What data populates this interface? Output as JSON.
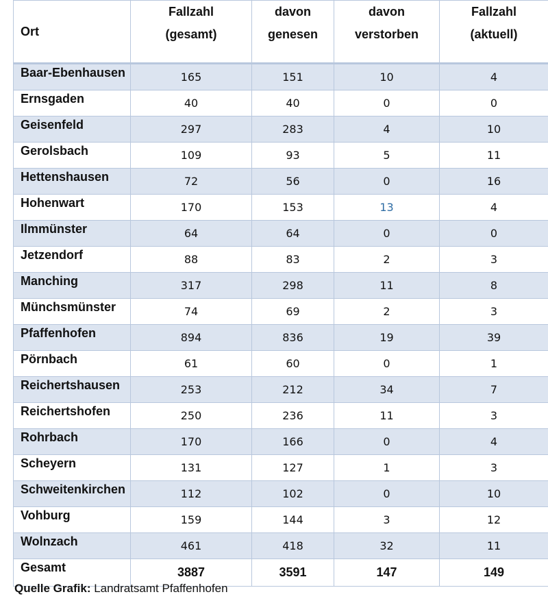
{
  "table": {
    "headers": {
      "ort": "Ort",
      "fallzahl_gesamt": [
        "Fallzahl",
        "(gesamt)"
      ],
      "genesen": [
        "davon",
        "genesen"
      ],
      "verstorben": [
        "davon",
        "verstorben"
      ],
      "fallzahl_aktuell": [
        "Fallzahl",
        "(aktuell)"
      ]
    },
    "rows": [
      {
        "ort": "Baar-Ebenhausen",
        "gesamt": "165",
        "genesen": "151",
        "verstorben": "10",
        "aktuell": "4"
      },
      {
        "ort": "Ernsgaden",
        "gesamt": "40",
        "genesen": "40",
        "verstorben": "0",
        "aktuell": "0"
      },
      {
        "ort": "Geisenfeld",
        "gesamt": "297",
        "genesen": "283",
        "verstorben": "4",
        "aktuell": "10"
      },
      {
        "ort": "Gerolsbach",
        "gesamt": "109",
        "genesen": "93",
        "verstorben": "5",
        "aktuell": "11"
      },
      {
        "ort": "Hettenshausen",
        "gesamt": "72",
        "genesen": "56",
        "verstorben": "0",
        "aktuell": "16"
      },
      {
        "ort": "Hohenwart",
        "gesamt": "170",
        "genesen": "153",
        "verstorben": "13",
        "aktuell": "4"
      },
      {
        "ort": "Ilmmünster",
        "gesamt": "64",
        "genesen": "64",
        "verstorben": "0",
        "aktuell": "0"
      },
      {
        "ort": "Jetzendorf",
        "gesamt": "88",
        "genesen": "83",
        "verstorben": "2",
        "aktuell": "3"
      },
      {
        "ort": "Manching",
        "gesamt": "317",
        "genesen": "298",
        "verstorben": "11",
        "aktuell": "8"
      },
      {
        "ort": "Münchsmünster",
        "gesamt": "74",
        "genesen": "69",
        "verstorben": "2",
        "aktuell": "3"
      },
      {
        "ort": "Pfaffenhofen",
        "gesamt": "894",
        "genesen": "836",
        "verstorben": "19",
        "aktuell": "39"
      },
      {
        "ort": "Pörnbach",
        "gesamt": "61",
        "genesen": "60",
        "verstorben": "0",
        "aktuell": "1"
      },
      {
        "ort": "Reichertshausen",
        "gesamt": "253",
        "genesen": "212",
        "verstorben": "34",
        "aktuell": "7"
      },
      {
        "ort": "Reichertshofen",
        "gesamt": "250",
        "genesen": "236",
        "verstorben": "11",
        "aktuell": "3"
      },
      {
        "ort": "Rohrbach",
        "gesamt": "170",
        "genesen": "166",
        "verstorben": "0",
        "aktuell": "4"
      },
      {
        "ort": "Scheyern",
        "gesamt": "131",
        "genesen": "127",
        "verstorben": "1",
        "aktuell": "3"
      },
      {
        "ort": "Schweitenkirchen",
        "gesamt": "112",
        "genesen": "102",
        "verstorben": "0",
        "aktuell": "10"
      },
      {
        "ort": "Vohburg",
        "gesamt": "159",
        "genesen": "144",
        "verstorben": "3",
        "aktuell": "12"
      },
      {
        "ort": "Wolnzach",
        "gesamt": "461",
        "genesen": "418",
        "verstorben": "32",
        "aktuell": "11"
      }
    ],
    "total": {
      "ort": "Gesamt",
      "gesamt": "3887",
      "genesen": "3591",
      "verstorben": "147",
      "aktuell": "149"
    },
    "colors": {
      "shaded_row": "#dce4f0",
      "border": "#b8c7dd",
      "highlight_text": "#2e6ca4"
    }
  },
  "source": {
    "label": "Quelle Grafik:",
    "text": "Landratsamt Pfaffenhofen"
  }
}
